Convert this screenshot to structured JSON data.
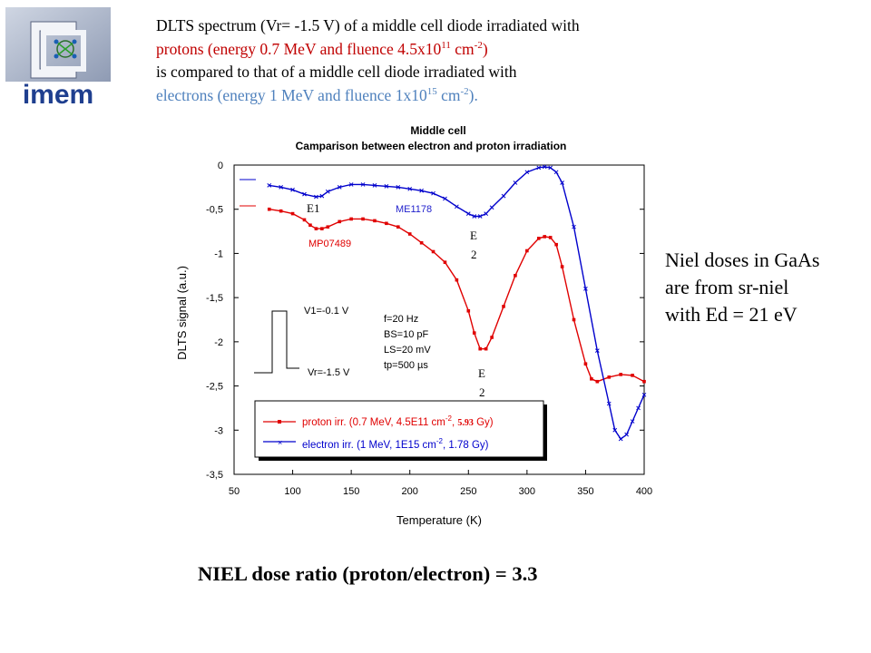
{
  "logo": {
    "text": "imem",
    "icon": "cnr-imem-logo"
  },
  "caption": {
    "line1": "DLTS  spectrum (Vr= -1.5 V) of a middle cell diode irradiated with",
    "line2_pre": "protons  (energy  0.7 MeV and fluence 4.5x10",
    "line2_sup": "11",
    "line2_mid": " cm",
    "line2_sup2": "-2",
    "line2_post": ")",
    "line3": "is compared to that of a middle cell diode irradiated with",
    "line4_pre": "electrons (energy  1 MeV and fluence 1x10",
    "line4_sup": "15",
    "line4_mid": " cm",
    "line4_sup2": "-2",
    "line4_post": ").",
    "colors": {
      "protons": "#c00000",
      "electrons": "#4f81bd"
    }
  },
  "side_note": {
    "line1": "Niel doses in GaAs",
    "line2": "are from sr-niel",
    "line3": "with Ed = 21 eV"
  },
  "conclusion": "NIEL dose ratio (proton/electron) = 3.3",
  "chart_data": {
    "type": "line",
    "title": "Middle cell",
    "subtitle": "Camparison between electron and proton irradiation",
    "xlabel": "Temperature (K)",
    "ylabel": "DLTS signal (a.u.)",
    "xlim": [
      50,
      400
    ],
    "ylim": [
      -3.5,
      0
    ],
    "x_ticks": [
      50,
      100,
      150,
      200,
      250,
      300,
      350,
      400
    ],
    "y_ticks": [
      0,
      -0.5,
      -1,
      -1.5,
      -2,
      -2.5,
      -3,
      -3.5
    ],
    "x_tick_labels": [
      "50",
      "100",
      "150",
      "200",
      "250",
      "300",
      "350",
      "400"
    ],
    "y_tick_labels": [
      "0",
      "-0,5",
      "-1",
      "-1,5",
      "-2",
      "-2,5",
      "-3",
      "-3,5"
    ],
    "series": [
      {
        "name": "proton irr. (0.7 MeV, 4.5E11 cm-2, 5.93 Gy)",
        "color": "#e00000",
        "sample": "MP07489",
        "x": [
          80,
          90,
          100,
          110,
          115,
          120,
          125,
          130,
          140,
          150,
          160,
          170,
          180,
          190,
          200,
          210,
          220,
          230,
          240,
          250,
          255,
          260,
          265,
          270,
          280,
          290,
          300,
          310,
          315,
          320,
          325,
          330,
          340,
          350,
          355,
          360,
          370,
          380,
          390,
          400
        ],
        "y": [
          -0.5,
          -0.52,
          -0.55,
          -0.62,
          -0.68,
          -0.72,
          -0.72,
          -0.7,
          -0.64,
          -0.61,
          -0.61,
          -0.63,
          -0.66,
          -0.7,
          -0.78,
          -0.88,
          -0.98,
          -1.1,
          -1.3,
          -1.65,
          -1.9,
          -2.08,
          -2.08,
          -1.95,
          -1.6,
          -1.25,
          -0.97,
          -0.83,
          -0.81,
          -0.82,
          -0.9,
          -1.15,
          -1.75,
          -2.25,
          -2.42,
          -2.45,
          -2.4,
          -2.37,
          -2.38,
          -2.45
        ]
      },
      {
        "name": "electron irr. (1 MeV, 1E15 cm-2, 1.78 Gy)",
        "color": "#0000cc",
        "sample": "ME1178",
        "x": [
          80,
          90,
          100,
          110,
          120,
          125,
          130,
          140,
          150,
          160,
          170,
          180,
          190,
          200,
          210,
          220,
          230,
          240,
          250,
          255,
          260,
          265,
          270,
          280,
          290,
          300,
          310,
          315,
          320,
          325,
          330,
          340,
          350,
          360,
          370,
          375,
          380,
          385,
          390,
          395,
          400
        ],
        "y": [
          -0.23,
          -0.25,
          -0.28,
          -0.33,
          -0.36,
          -0.35,
          -0.3,
          -0.25,
          -0.22,
          -0.22,
          -0.23,
          -0.24,
          -0.25,
          -0.27,
          -0.29,
          -0.32,
          -0.38,
          -0.47,
          -0.55,
          -0.58,
          -0.58,
          -0.55,
          -0.48,
          -0.35,
          -0.2,
          -0.08,
          -0.03,
          -0.02,
          -0.03,
          -0.08,
          -0.2,
          -0.7,
          -1.4,
          -2.1,
          -2.7,
          -3.0,
          -3.1,
          -3.05,
          -2.9,
          -2.75,
          -2.6
        ]
      }
    ],
    "legend": {
      "position": "bottom-center",
      "entries": [
        {
          "pre": "proton irr. (0.7 MeV, 4.5E11 cm",
          "sup": "-2",
          "mid": ", ",
          "value": "5.93",
          "post": " Gy)",
          "color": "#e00000"
        },
        {
          "pre": "electron irr. (1 MeV, 1E15 cm",
          "sup": "-2",
          "post": ", 1.78 Gy)",
          "color": "#0000cc"
        }
      ]
    },
    "annotations": {
      "e1": "E1",
      "e2_top_a": "E",
      "e2_top_b": "2",
      "e2_bottom_a": "E",
      "e2_bottom_b": "2",
      "me_label": "ME1178",
      "mp_label": "MP07489",
      "v1": "V1=-0.1 V",
      "vr": "Vr=-1.5 V",
      "params": [
        "f=20 Hz",
        "BS=10 pF",
        "LS=20 mV",
        "tp=500 µs"
      ]
    }
  }
}
